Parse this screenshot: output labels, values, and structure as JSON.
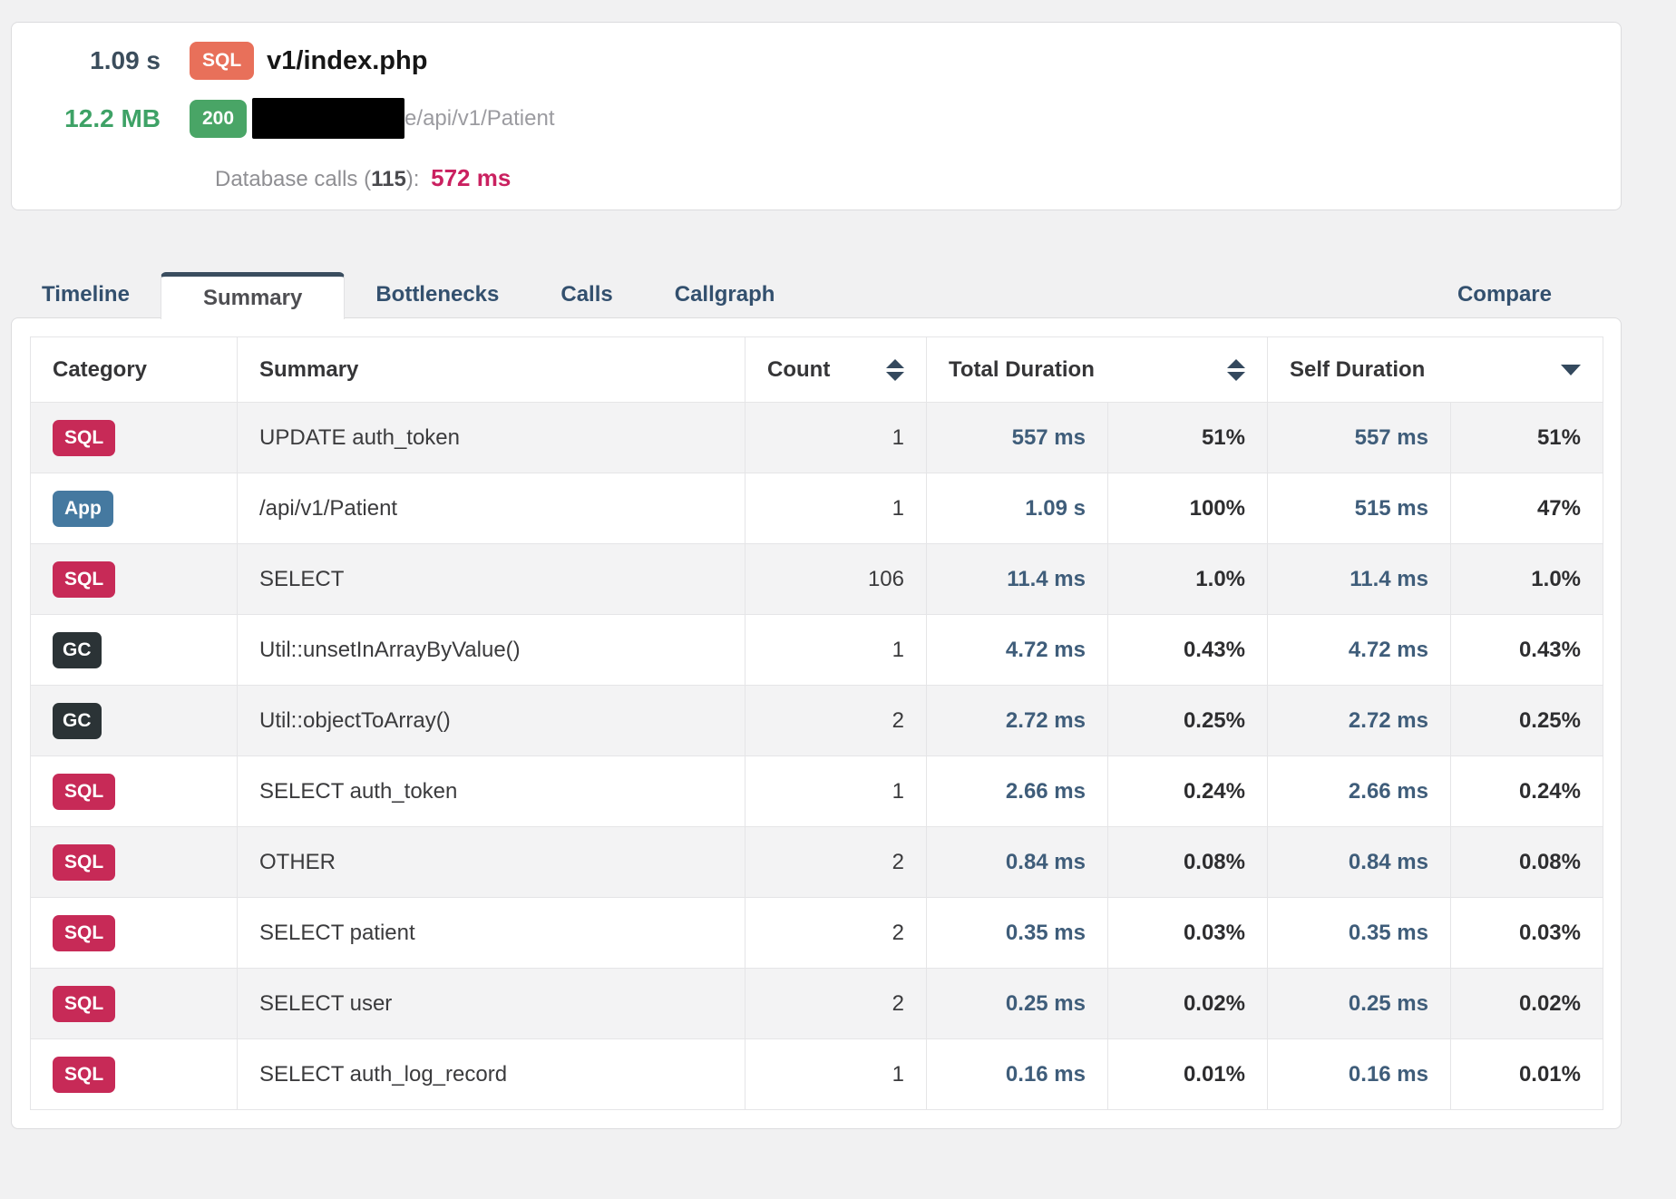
{
  "header_card": {
    "duration": "1.09 s",
    "memory": "12.2 MB",
    "method_badge": "SQL",
    "status_badge": "200",
    "title": "v1/index.php",
    "url_suffix": "e/api/v1/Patient",
    "db_calls_prefix": "Database calls (",
    "db_calls_count": "115",
    "db_calls_suffix": "):",
    "db_calls_time": "572 ms"
  },
  "tabs": {
    "items": [
      "Timeline",
      "Summary",
      "Bottlenecks",
      "Calls",
      "Callgraph"
    ],
    "active": "Summary",
    "compare": "Compare"
  },
  "table": {
    "headers": {
      "category": "Category",
      "summary": "Summary",
      "count": "Count",
      "total_duration": "Total Duration",
      "self_duration": "Self Duration"
    },
    "sort": {
      "count": "none",
      "total_duration": "none",
      "self_duration": "desc"
    },
    "rows": [
      {
        "category": "SQL",
        "summary": "UPDATE auth_token",
        "count": "1",
        "total_ms": "557 ms",
        "total_pct": "51%",
        "self_ms": "557 ms",
        "self_pct": "51%"
      },
      {
        "category": "App",
        "summary": "/api/v1/Patient",
        "count": "1",
        "total_ms": "1.09 s",
        "total_pct": "100%",
        "self_ms": "515 ms",
        "self_pct": "47%"
      },
      {
        "category": "SQL",
        "summary": "SELECT",
        "count": "106",
        "total_ms": "11.4 ms",
        "total_pct": "1.0%",
        "self_ms": "11.4 ms",
        "self_pct": "1.0%"
      },
      {
        "category": "GC",
        "summary": "Util::unsetInArrayByValue()",
        "count": "1",
        "total_ms": "4.72 ms",
        "total_pct": "0.43%",
        "self_ms": "4.72 ms",
        "self_pct": "0.43%"
      },
      {
        "category": "GC",
        "summary": "Util::objectToArray()",
        "count": "2",
        "total_ms": "2.72 ms",
        "total_pct": "0.25%",
        "self_ms": "2.72 ms",
        "self_pct": "0.25%"
      },
      {
        "category": "SQL",
        "summary": "SELECT auth_token",
        "count": "1",
        "total_ms": "2.66 ms",
        "total_pct": "0.24%",
        "self_ms": "2.66 ms",
        "self_pct": "0.24%"
      },
      {
        "category": "SQL",
        "summary": "OTHER",
        "count": "2",
        "total_ms": "0.84 ms",
        "total_pct": "0.08%",
        "self_ms": "0.84 ms",
        "self_pct": "0.08%"
      },
      {
        "category": "SQL",
        "summary": "SELECT patient",
        "count": "2",
        "total_ms": "0.35 ms",
        "total_pct": "0.03%",
        "self_ms": "0.35 ms",
        "self_pct": "0.03%"
      },
      {
        "category": "SQL",
        "summary": "SELECT user",
        "count": "2",
        "total_ms": "0.25 ms",
        "total_pct": "0.02%",
        "self_ms": "0.25 ms",
        "self_pct": "0.02%"
      },
      {
        "category": "SQL",
        "summary": "SELECT auth_log_record",
        "count": "1",
        "total_ms": "0.16 ms",
        "total_pct": "0.01%",
        "self_ms": "0.16 ms",
        "self_pct": "0.01%"
      }
    ]
  },
  "colors": {
    "sql_badge": "#c72a57",
    "app_badge": "#4579a0",
    "gc_badge": "#2b3336",
    "header_sql_badge": "#e8705a",
    "status_200_badge": "#49a566",
    "duration_navy": "#3b4d5c",
    "memory_green": "#3ea266",
    "db_time_pink": "#ca2160",
    "ms_value_blue": "#3f5d7a",
    "tab_navy": "#33506e",
    "page_background": "#f1f1f2"
  }
}
